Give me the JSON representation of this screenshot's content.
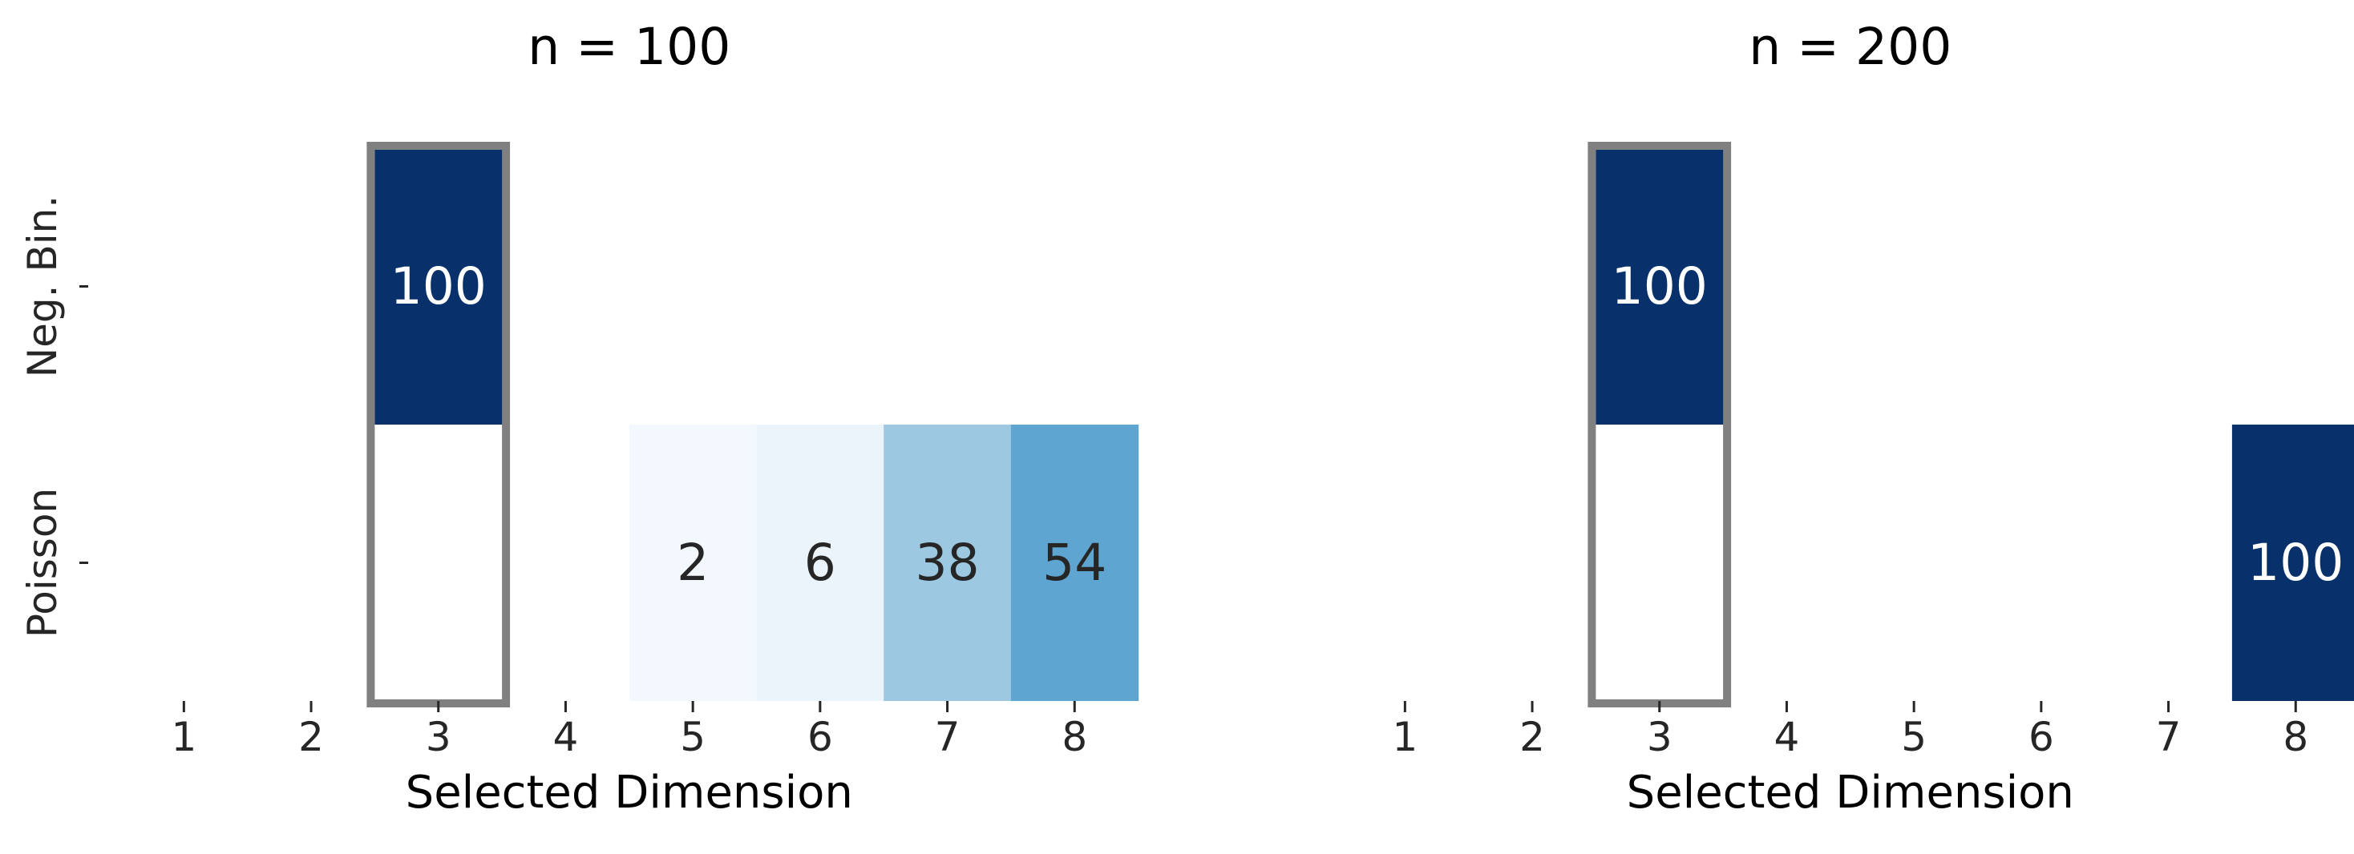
{
  "chart_data": [
    {
      "type": "heatmap",
      "title": "n = 100",
      "xlabel": "Selected Dimension",
      "ylabel": "",
      "x_categories": [
        "1",
        "2",
        "3",
        "4",
        "5",
        "6",
        "7",
        "8"
      ],
      "y_categories": [
        "Neg. Bin.",
        "Poisson"
      ],
      "colormap": "Blues",
      "value_range": [
        0,
        100
      ],
      "highlight_column": "3",
      "highlight_color": "#808080",
      "grid": false,
      "cells": [
        {
          "row": "Neg. Bin.",
          "col": "3",
          "value": 100
        },
        {
          "row": "Poisson",
          "col": "5",
          "value": 2
        },
        {
          "row": "Poisson",
          "col": "6",
          "value": 6
        },
        {
          "row": "Poisson",
          "col": "7",
          "value": 38
        },
        {
          "row": "Poisson",
          "col": "8",
          "value": 54
        }
      ]
    },
    {
      "type": "heatmap",
      "title": "n = 200",
      "xlabel": "Selected Dimension",
      "ylabel": "",
      "x_categories": [
        "1",
        "2",
        "3",
        "4",
        "5",
        "6",
        "7",
        "8"
      ],
      "y_categories": [
        "Neg. Bin.",
        "Poisson"
      ],
      "colormap": "Blues",
      "value_range": [
        0,
        100
      ],
      "highlight_column": "3",
      "highlight_color": "#808080",
      "grid": false,
      "cells": [
        {
          "row": "Neg. Bin.",
          "col": "3",
          "value": 100
        },
        {
          "row": "Poisson",
          "col": "8",
          "value": 100
        }
      ]
    }
  ]
}
